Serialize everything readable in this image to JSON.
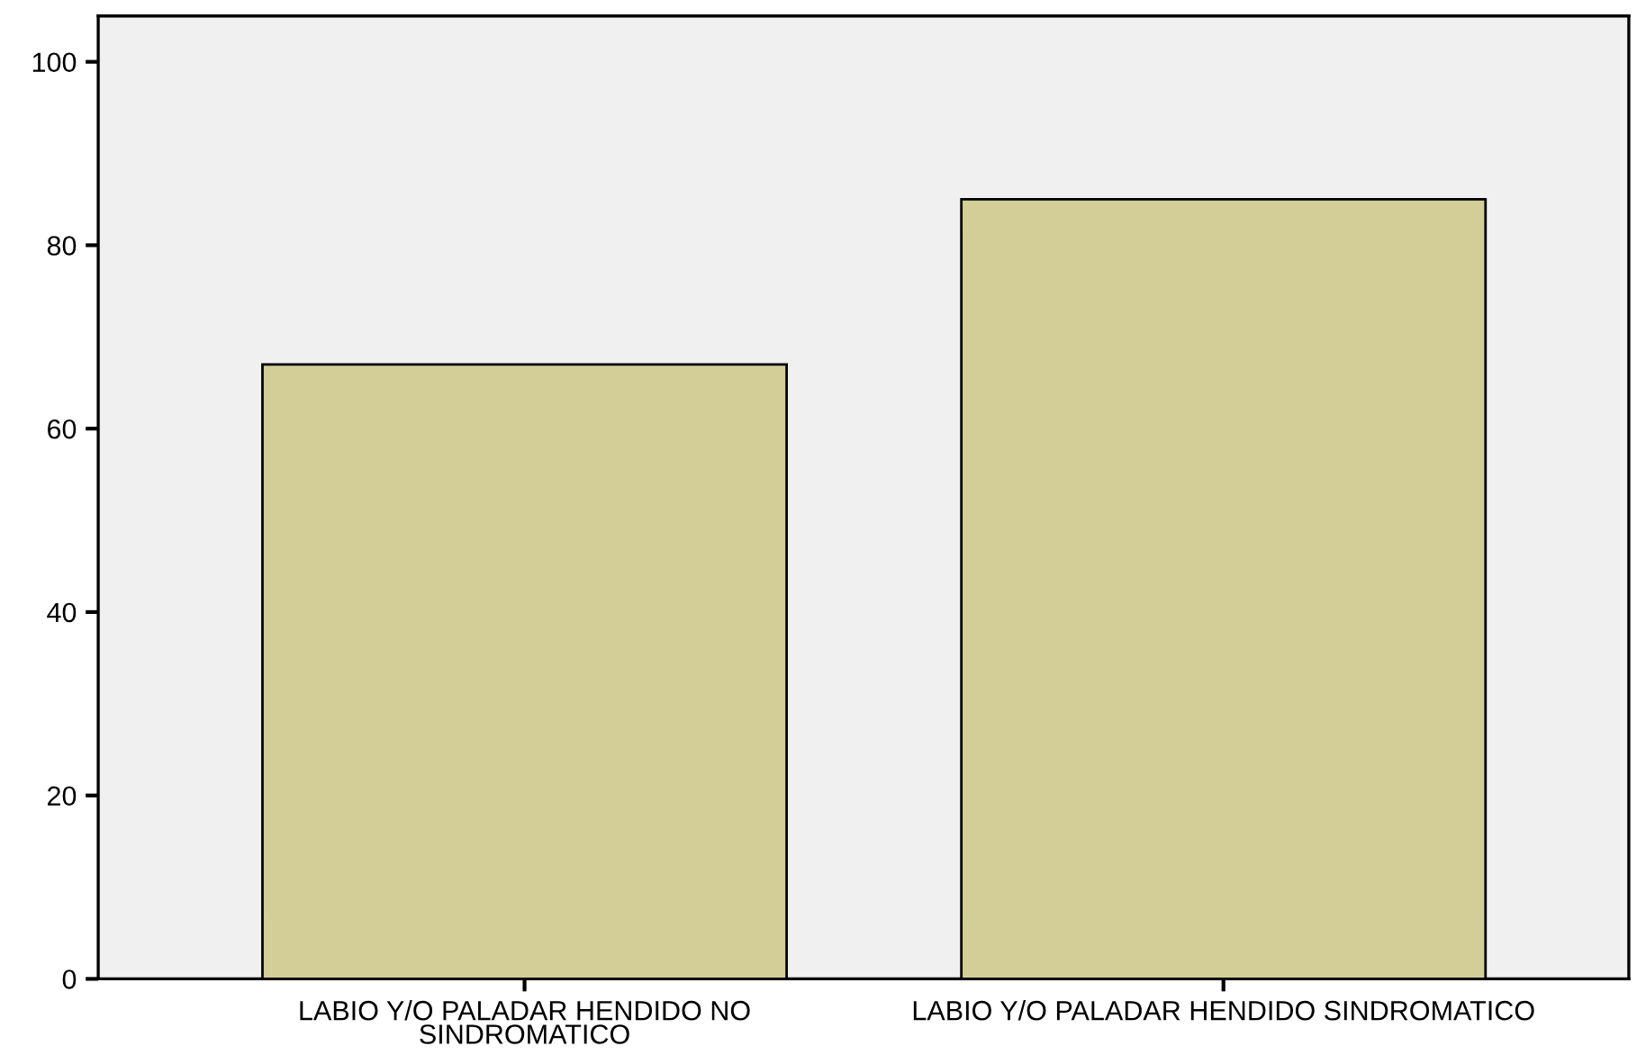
{
  "chart_data": {
    "type": "bar",
    "categories": [
      "LABIO Y/O PALADAR HENDIDO NO\nSINDROMATICO",
      "LABIO Y/O PALADAR HENDIDO SINDROMATICO"
    ],
    "values": [
      67,
      85
    ],
    "color": "#d3ce97",
    "ylim": [
      0,
      105
    ],
    "yticks": [
      0,
      20,
      40,
      60,
      80,
      100
    ],
    "grid": false
  }
}
